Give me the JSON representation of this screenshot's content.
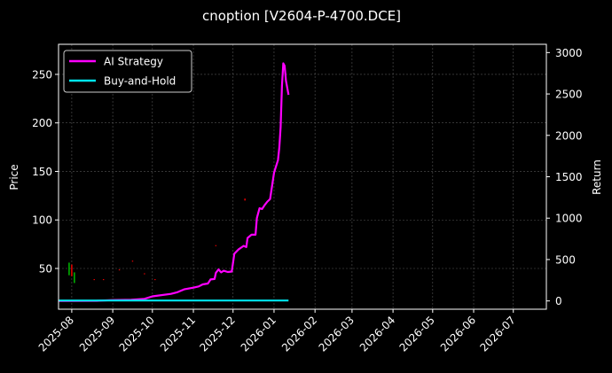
{
  "chart_data": {
    "type": "line",
    "title": "cnoption [V2604-P-4700.DCE]",
    "left_axis": {
      "label": "Price",
      "ticks": [
        50,
        100,
        150,
        200,
        250
      ],
      "range": [
        8,
        281
      ]
    },
    "right_axis": {
      "label": "Return",
      "ticks": [
        0,
        500,
        1000,
        1500,
        2000,
        2500,
        3000
      ],
      "range": [
        -100,
        3100
      ]
    },
    "x_axis": {
      "range": [
        "2025-07-22",
        "2026-07-26"
      ],
      "ticks": [
        "2025-08",
        "2025-09",
        "2025-10",
        "2025-11",
        "2025-12",
        "2026-01",
        "2026-02",
        "2026-03",
        "2026-04",
        "2026-05",
        "2026-06",
        "2026-07"
      ]
    },
    "grid": true,
    "legend_placement": "top-left",
    "colors": {
      "ai": "#ff00ff",
      "bh": "#00e5ee",
      "up": "#00c800",
      "down": "#ff0000",
      "grid": "#555555",
      "axis": "#ffffff"
    },
    "series": [
      {
        "name": "AI Strategy",
        "axis": "right",
        "color": "#ff00ff",
        "points": [
          [
            "2025-07-22",
            0
          ],
          [
            "2025-08-20",
            2
          ],
          [
            "2025-09-01",
            10
          ],
          [
            "2025-09-15",
            15
          ],
          [
            "2025-09-25",
            25
          ],
          [
            "2025-10-01",
            55
          ],
          [
            "2025-10-15",
            85
          ],
          [
            "2025-10-20",
            105
          ],
          [
            "2025-10-25",
            140
          ],
          [
            "2025-11-01",
            160
          ],
          [
            "2025-11-05",
            175
          ],
          [
            "2025-11-08",
            200
          ],
          [
            "2025-11-12",
            210
          ],
          [
            "2025-11-14",
            260
          ],
          [
            "2025-11-17",
            265
          ],
          [
            "2025-11-18",
            340
          ],
          [
            "2025-11-20",
            380
          ],
          [
            "2025-11-22",
            345
          ],
          [
            "2025-11-24",
            365
          ],
          [
            "2025-11-27",
            350
          ],
          [
            "2025-11-30",
            355
          ],
          [
            "2025-12-02",
            570
          ],
          [
            "2025-12-05",
            620
          ],
          [
            "2025-12-09",
            665
          ],
          [
            "2025-12-11",
            650
          ],
          [
            "2025-12-12",
            760
          ],
          [
            "2025-12-15",
            800
          ],
          [
            "2025-12-18",
            800
          ],
          [
            "2025-12-19",
            1000
          ],
          [
            "2025-12-21",
            1120
          ],
          [
            "2025-12-23",
            1110
          ],
          [
            "2025-12-25",
            1160
          ],
          [
            "2025-12-27",
            1200
          ],
          [
            "2025-12-29",
            1230
          ],
          [
            "2026-01-01",
            1550
          ],
          [
            "2026-01-04",
            1700
          ],
          [
            "2026-01-05",
            1850
          ],
          [
            "2026-01-06",
            2100
          ],
          [
            "2026-01-07",
            2600
          ],
          [
            "2026-01-08",
            2870
          ],
          [
            "2026-01-09",
            2840
          ],
          [
            "2026-01-10",
            2660
          ],
          [
            "2026-01-12",
            2490
          ]
        ]
      },
      {
        "name": "Buy-and-Hold",
        "axis": "right",
        "color": "#00e5ee",
        "points": [
          [
            "2025-07-22",
            5
          ],
          [
            "2026-01-12",
            5
          ]
        ]
      }
    ],
    "candles": [
      {
        "date": "2025-07-30",
        "low": 43,
        "high": 56,
        "color": "#00c800"
      },
      {
        "date": "2025-08-01",
        "low": 42,
        "high": 54,
        "color": "#ff0000"
      },
      {
        "date": "2025-08-03",
        "low": 35,
        "high": 46,
        "color": "#00c800"
      },
      {
        "date": "2025-08-18",
        "low": 38,
        "high": 39,
        "color": "#ff0000"
      },
      {
        "date": "2025-08-25",
        "low": 38,
        "high": 39,
        "color": "#ff0000"
      },
      {
        "date": "2025-09-06",
        "low": 48,
        "high": 49,
        "color": "#ff0000"
      },
      {
        "date": "2025-09-16",
        "low": 57,
        "high": 58,
        "color": "#ff0000"
      },
      {
        "date": "2025-09-25",
        "low": 44,
        "high": 45,
        "color": "#ff0000"
      },
      {
        "date": "2025-10-03",
        "low": 38,
        "high": 39,
        "color": "#ff0000"
      },
      {
        "date": "2025-11-18",
        "low": 73,
        "high": 74,
        "color": "#ff0000"
      },
      {
        "date": "2025-12-10",
        "low": 120,
        "high": 122,
        "color": "#ff0000"
      }
    ]
  }
}
